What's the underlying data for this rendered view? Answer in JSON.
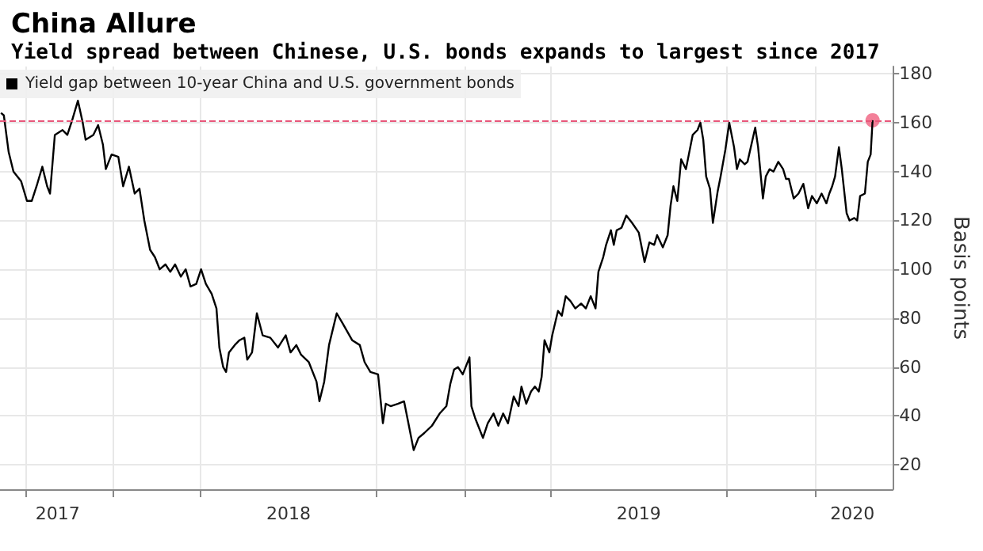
{
  "chart_data": {
    "type": "line",
    "title": "China Allure",
    "subtitle": "Yield spread between Chinese, U.S. bonds expands to largest since 2017",
    "ylabel": "Basis points",
    "x": [
      "2017-09-06",
      "2017-09-09",
      "2017-09-14",
      "2017-09-19",
      "2017-09-27",
      "2017-10-03",
      "2017-10-08",
      "2017-10-13",
      "2017-10-19",
      "2017-10-24",
      "2017-10-27",
      "2017-11-01",
      "2017-11-09",
      "2017-11-14",
      "2017-11-19",
      "2017-11-25",
      "2017-11-30",
      "2017-12-03",
      "2017-12-11",
      "2017-12-16",
      "2017-12-21",
      "2017-12-24",
      "2017-12-30",
      "2018-01-06",
      "2018-01-11",
      "2018-01-17",
      "2018-01-23",
      "2018-01-28",
      "2018-02-02",
      "2018-02-08",
      "2018-02-13",
      "2018-02-18",
      "2018-02-24",
      "2018-03-01",
      "2018-03-06",
      "2018-03-12",
      "2018-03-17",
      "2018-03-22",
      "2018-03-28",
      "2018-04-02",
      "2018-04-07",
      "2018-04-13",
      "2018-04-18",
      "2018-04-21",
      "2018-04-25",
      "2018-04-28",
      "2018-05-01",
      "2018-05-07",
      "2018-05-12",
      "2018-05-17",
      "2018-05-20",
      "2018-05-25",
      "2018-05-30",
      "2018-06-05",
      "2018-06-13",
      "2018-06-21",
      "2018-06-29",
      "2018-07-04",
      "2018-07-10",
      "2018-07-15",
      "2018-07-23",
      "2018-07-31",
      "2018-08-03",
      "2018-08-08",
      "2018-08-13",
      "2018-08-21",
      "2018-08-27",
      "2018-09-06",
      "2018-09-14",
      "2018-09-19",
      "2018-09-25",
      "2018-10-03",
      "2018-10-08",
      "2018-10-11",
      "2018-10-16",
      "2018-10-24",
      "2018-10-30",
      "2018-11-03",
      "2018-11-09",
      "2018-11-14",
      "2018-11-20",
      "2018-11-28",
      "2018-12-06",
      "2018-12-13",
      "2018-12-17",
      "2018-12-21",
      "2018-12-25",
      "2018-12-30",
      "2019-01-06",
      "2019-01-08",
      "2019-01-12",
      "2019-01-20",
      "2019-01-25",
      "2019-01-31",
      "2019-02-05",
      "2019-02-10",
      "2019-02-15",
      "2019-02-21",
      "2019-02-26",
      "2019-03-01",
      "2019-03-06",
      "2019-03-11",
      "2019-03-15",
      "2019-03-19",
      "2019-03-22",
      "2019-03-25",
      "2019-03-30",
      "2019-04-02",
      "2019-04-08",
      "2019-04-12",
      "2019-04-16",
      "2019-04-21",
      "2019-04-26",
      "2019-05-02",
      "2019-05-07",
      "2019-05-12",
      "2019-05-17",
      "2019-05-20",
      "2019-05-25",
      "2019-05-28",
      "2019-06-02",
      "2019-06-05",
      "2019-06-08",
      "2019-06-13",
      "2019-06-18",
      "2019-06-24",
      "2019-07-01",
      "2019-07-07",
      "2019-07-12",
      "2019-07-17",
      "2019-07-20",
      "2019-07-26",
      "2019-07-31",
      "2019-08-03",
      "2019-08-06",
      "2019-08-10",
      "2019-08-14",
      "2019-08-19",
      "2019-08-22",
      "2019-08-26",
      "2019-08-31",
      "2019-09-03",
      "2019-09-06",
      "2019-09-09",
      "2019-09-13",
      "2019-09-16",
      "2019-09-21",
      "2019-09-24",
      "2019-09-29",
      "2019-10-03",
      "2019-10-08",
      "2019-10-11",
      "2019-10-14",
      "2019-10-19",
      "2019-10-22",
      "2019-10-30",
      "2019-11-02",
      "2019-11-07",
      "2019-11-10",
      "2019-11-14",
      "2019-11-18",
      "2019-11-23",
      "2019-11-28",
      "2019-12-01",
      "2019-12-04",
      "2019-12-09",
      "2019-12-14",
      "2019-12-19",
      "2019-12-24",
      "2019-12-28",
      "2020-01-02",
      "2020-01-07",
      "2020-01-12",
      "2020-01-15",
      "2020-01-18",
      "2020-01-21",
      "2020-01-25",
      "2020-01-28",
      "2020-02-02",
      "2020-02-05",
      "2020-02-10",
      "2020-02-13",
      "2020-02-16",
      "2020-02-21",
      "2020-02-24",
      "2020-02-27",
      "2020-02-29"
    ],
    "series": [
      {
        "name": "Yield gap between 10-year China and U.S. government bonds",
        "color": "#000000",
        "values": [
          164,
          163,
          148,
          140,
          136,
          128,
          128,
          134,
          142,
          134,
          131,
          155,
          157,
          155,
          161,
          169,
          160,
          153,
          155,
          159,
          151,
          141,
          147,
          146,
          134,
          142,
          131,
          133,
          120,
          108,
          105,
          100,
          102,
          99,
          102,
          97,
          100,
          93,
          94,
          100,
          94,
          90,
          84,
          68,
          60,
          58,
          66,
          69,
          71,
          72,
          63,
          66,
          82,
          73,
          72,
          68,
          73,
          66,
          69,
          65,
          62,
          54,
          46,
          54,
          69,
          82,
          78,
          71,
          69,
          62,
          58,
          57,
          37,
          45,
          44,
          45,
          46,
          38,
          26,
          31,
          33,
          36,
          41,
          44,
          53,
          59,
          60,
          57,
          64,
          44,
          39,
          31,
          37,
          41,
          36,
          41,
          37,
          48,
          44,
          52,
          45,
          50,
          52,
          50,
          56,
          71,
          66,
          73,
          83,
          81,
          89,
          87,
          84,
          86,
          84,
          89,
          84,
          99,
          105,
          110,
          116,
          110,
          116,
          117,
          122,
          119,
          115,
          103,
          111,
          110,
          114,
          109,
          114,
          126,
          134,
          128,
          145,
          141,
          147,
          155,
          157,
          160,
          153,
          138,
          133,
          119,
          132,
          138,
          149,
          160,
          150,
          141,
          145,
          143,
          144,
          158,
          150,
          129,
          138,
          141,
          140,
          144,
          141,
          137,
          137,
          129,
          131,
          135,
          125,
          130,
          127,
          131,
          127,
          131,
          134,
          138,
          150,
          141,
          123,
          120,
          121,
          120,
          130,
          131,
          144,
          147,
          161
        ]
      },
      {
        "type": "scatter",
        "marker": "circle",
        "color": "#f06080",
        "x": [
          "2020-02-29"
        ],
        "values": [
          161
        ]
      }
    ],
    "xlim": [
      "2017-09-05",
      "2020-03-21"
    ],
    "xticks": [
      {
        "value": "2017-10-01",
        "label": null
      },
      {
        "value": "2017-11-04",
        "label": "2017"
      },
      {
        "value": "2018-01-01",
        "label": null
      },
      {
        "value": "2018-04-01",
        "label": null
      },
      {
        "value": "2018-07-02",
        "label": "2018"
      },
      {
        "value": "2018-10-01",
        "label": null
      },
      {
        "value": "2019-01-01",
        "label": null
      },
      {
        "value": "2019-04-01",
        "label": null
      },
      {
        "value": "2019-07-01",
        "label": "2019"
      },
      {
        "value": "2019-10-01",
        "label": null
      },
      {
        "value": "2020-01-01",
        "label": null
      },
      {
        "value": "2020-02-08",
        "label": "2020"
      }
    ],
    "ylim": [
      10,
      183
    ],
    "yticks": [
      20,
      40,
      60,
      80,
      100,
      120,
      140,
      160,
      180
    ],
    "ref_lines": [
      {
        "axis": "y",
        "value": 161,
        "color": "#e8577a",
        "line_style": "dashed"
      }
    ],
    "grid": true,
    "legend": "top left",
    "marker": "none",
    "line_style": "solid"
  }
}
